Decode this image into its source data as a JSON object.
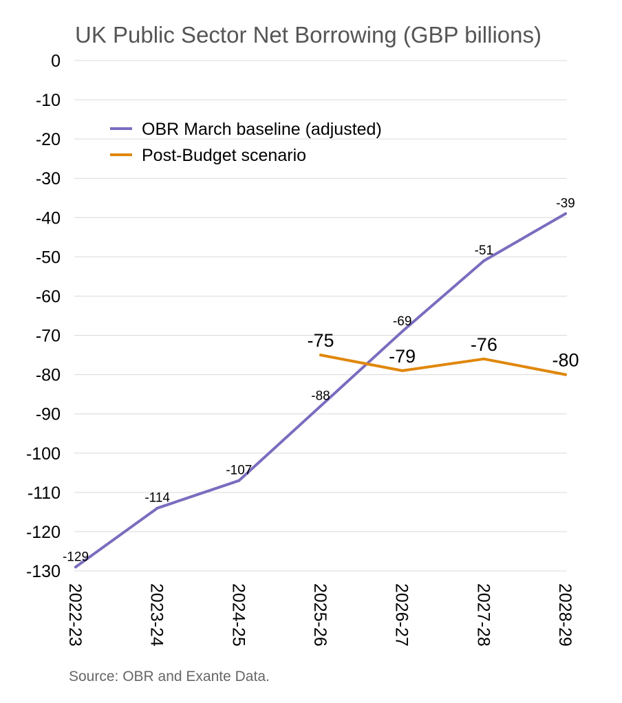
{
  "chart_data": {
    "type": "line",
    "title": "UK Public Sector Net Borrowing (GBP billions)",
    "xlabel": "",
    "ylabel": "",
    "categories": [
      "2022-23",
      "2023-24",
      "2024-25",
      "2025-26",
      "2026-27",
      "2027-28",
      "2028-29"
    ],
    "ylim": [
      -130,
      0
    ],
    "yticks": [
      "0",
      "-10",
      "-20",
      "-30",
      "-40",
      "-50",
      "-60",
      "-70",
      "-80",
      "-90",
      "-100",
      "-110",
      "-120",
      "-130"
    ],
    "grid": true,
    "legend_position": "top-left",
    "series": [
      {
        "name": "OBR March baseline (adjusted)",
        "color": "#7b6cbf",
        "values": [
          -129,
          -114,
          -107,
          -88,
          -69,
          -51,
          -39
        ],
        "labels": [
          "-129",
          "-114",
          "-107",
          "-88",
          "-69",
          "-51",
          "-39"
        ]
      },
      {
        "name": "Post-Budget scenario",
        "color": "#e0870b",
        "values": [
          null,
          null,
          null,
          -75,
          -79,
          -76,
          -80
        ],
        "labels": [
          null,
          null,
          null,
          "-75",
          "-79",
          "-76",
          "-80"
        ]
      }
    ]
  },
  "source": "Source: OBR and Exante Data."
}
